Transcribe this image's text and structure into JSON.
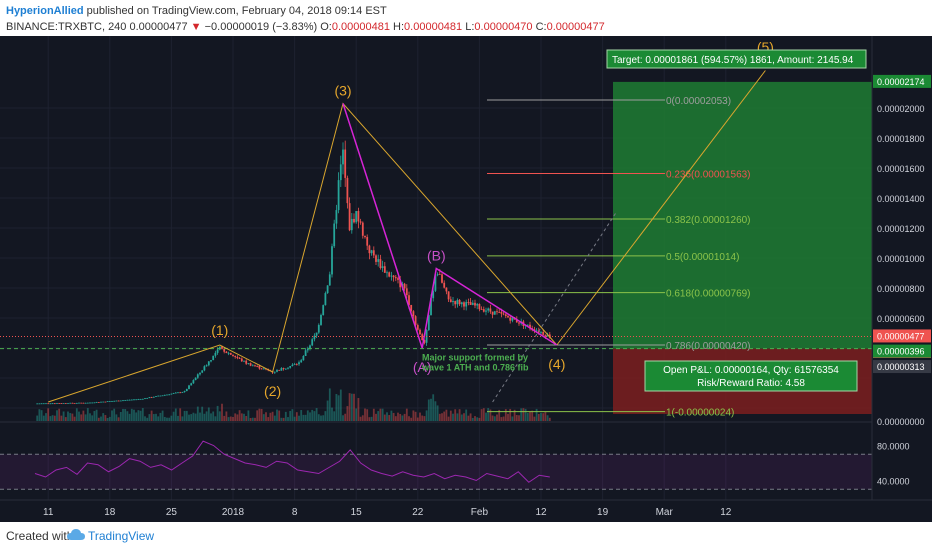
{
  "header": {
    "author": "HyperionAllied",
    "published": " published on TradingView.com, February 04, 2018 09:14 EST",
    "symbol": "BINANCE:TRXBTC, 240",
    "last": "0.00000477",
    "change": "−0.00000019 (−3.83%)",
    "open_label": "O:",
    "open": "0.00000481",
    "high_label": "H:",
    "high": "0.00000481",
    "low_label": "L:",
    "low": "0.00000470",
    "close_label": "C:",
    "close": "0.00000477"
  },
  "footer": {
    "created": "Created with",
    "brand": "TradingView"
  },
  "colors": {
    "bg": "#131722",
    "up": "#26a69a",
    "down": "#ef5350",
    "wave": "#d9a62e",
    "harmonic": "#d624d6",
    "fib": "#8bc34a",
    "target": "#1e7d32",
    "stop": "#7d1f1f",
    "rsi": "#9c27b0"
  },
  "chart_data": {
    "type": "candlestick",
    "x_ticks": [
      "11",
      "18",
      "25",
      "2018",
      "8",
      "15",
      "22",
      "Feb",
      "12",
      "19",
      "Mar",
      "12"
    ],
    "y_ticks": [
      "0.00002000",
      "0.00001800",
      "0.00001600",
      "0.00001400",
      "0.00001200",
      "0.00001000",
      "0.00000800",
      "0.00000600",
      "0.00000000"
    ],
    "ylim": [
      0,
      2.3e-05
    ],
    "price_path": [
      [
        0,
        3e-07
      ],
      [
        6,
        3.5e-07
      ],
      [
        12,
        6e-07
      ],
      [
        17,
        1.1e-06
      ],
      [
        21,
        4e-06
      ],
      [
        24,
        3e-06
      ],
      [
        27,
        2.4e-06
      ],
      [
        30,
        3e-06
      ],
      [
        32,
        5e-06
      ],
      [
        33.5,
        9e-06
      ],
      [
        34.5,
        1.5e-05
      ],
      [
        35,
        1.7e-05
      ],
      [
        35.7,
        1.2e-05
      ],
      [
        36.5,
        1.3e-05
      ],
      [
        38,
        1.05e-05
      ],
      [
        40,
        9e-06
      ],
      [
        42,
        8e-06
      ],
      [
        43.5,
        5.2e-06
      ],
      [
        44.2,
        4.2e-06
      ],
      [
        45.6,
        9.3e-06
      ],
      [
        47,
        7.2e-06
      ],
      [
        50,
        6.8e-06
      ],
      [
        54,
        6e-06
      ],
      [
        57,
        5.2e-06
      ],
      [
        58.5,
        4.77e-06
      ]
    ],
    "last_price": 4.77e-06,
    "price_labels": [
      "0.00002174",
      "0.00000477",
      "01:46:05",
      "0.00000396",
      "0.00000313",
      "0.00000000"
    ],
    "waves": [
      {
        "label": "(1)",
        "x": 21,
        "y": 4.2e-06
      },
      {
        "label": "(2)",
        "x": 27,
        "y": 2.4e-06
      },
      {
        "label": "(3)",
        "x": 35,
        "y": 2.03e-05
      },
      {
        "label": "(4)",
        "x": 59.3,
        "y": 4.2e-06
      },
      {
        "label": "(5)",
        "x": 83,
        "y": 2.25e-05
      }
    ],
    "harmonic": [
      {
        "label": "(A)",
        "x": 44,
        "y": 4e-06
      },
      {
        "label": "(B)",
        "x": 45.6,
        "y": 9.3e-06
      }
    ],
    "fib_levels": [
      {
        "label": "0(0.00002053)",
        "value": 2.053e-05
      },
      {
        "label": "0.236(0.00001563)",
        "value": 1.563e-05
      },
      {
        "label": "0.382(0.00001260)",
        "value": 1.26e-05
      },
      {
        "label": "0.5(0.00001014)",
        "value": 1.014e-05
      },
      {
        "label": "0.618(0.00000769)",
        "value": 7.69e-06
      },
      {
        "label": "0.786(0.00000420)",
        "value": 4.2e-06
      },
      {
        "label": "1(-0.00000024)",
        "value": -2.4e-07
      }
    ],
    "annotation": "Major support formed by wave 1 ATH and 0.786 fib",
    "target_box": "Target: 0.00001861 (594.57%) 1861, Amount: 2145.94",
    "pnl_box_line1": "Open P&L: 0.00000164, Qty: 61576354",
    "pnl_box_line2": "Risk/Reward Ratio: 4.58",
    "rsi": {
      "y_ticks": [
        "80.0000",
        "40.0000"
      ],
      "values": [
        48,
        44,
        52,
        55,
        47,
        60,
        58,
        50,
        56,
        65,
        62,
        55,
        58,
        52,
        60,
        68,
        85,
        80,
        70,
        65,
        60,
        58,
        55,
        62,
        60,
        52,
        50,
        48,
        55,
        62,
        75,
        60,
        52,
        48,
        45,
        50,
        46,
        44,
        48,
        42,
        46,
        44,
        40,
        48,
        45,
        42,
        50,
        38,
        46,
        44
      ]
    }
  }
}
